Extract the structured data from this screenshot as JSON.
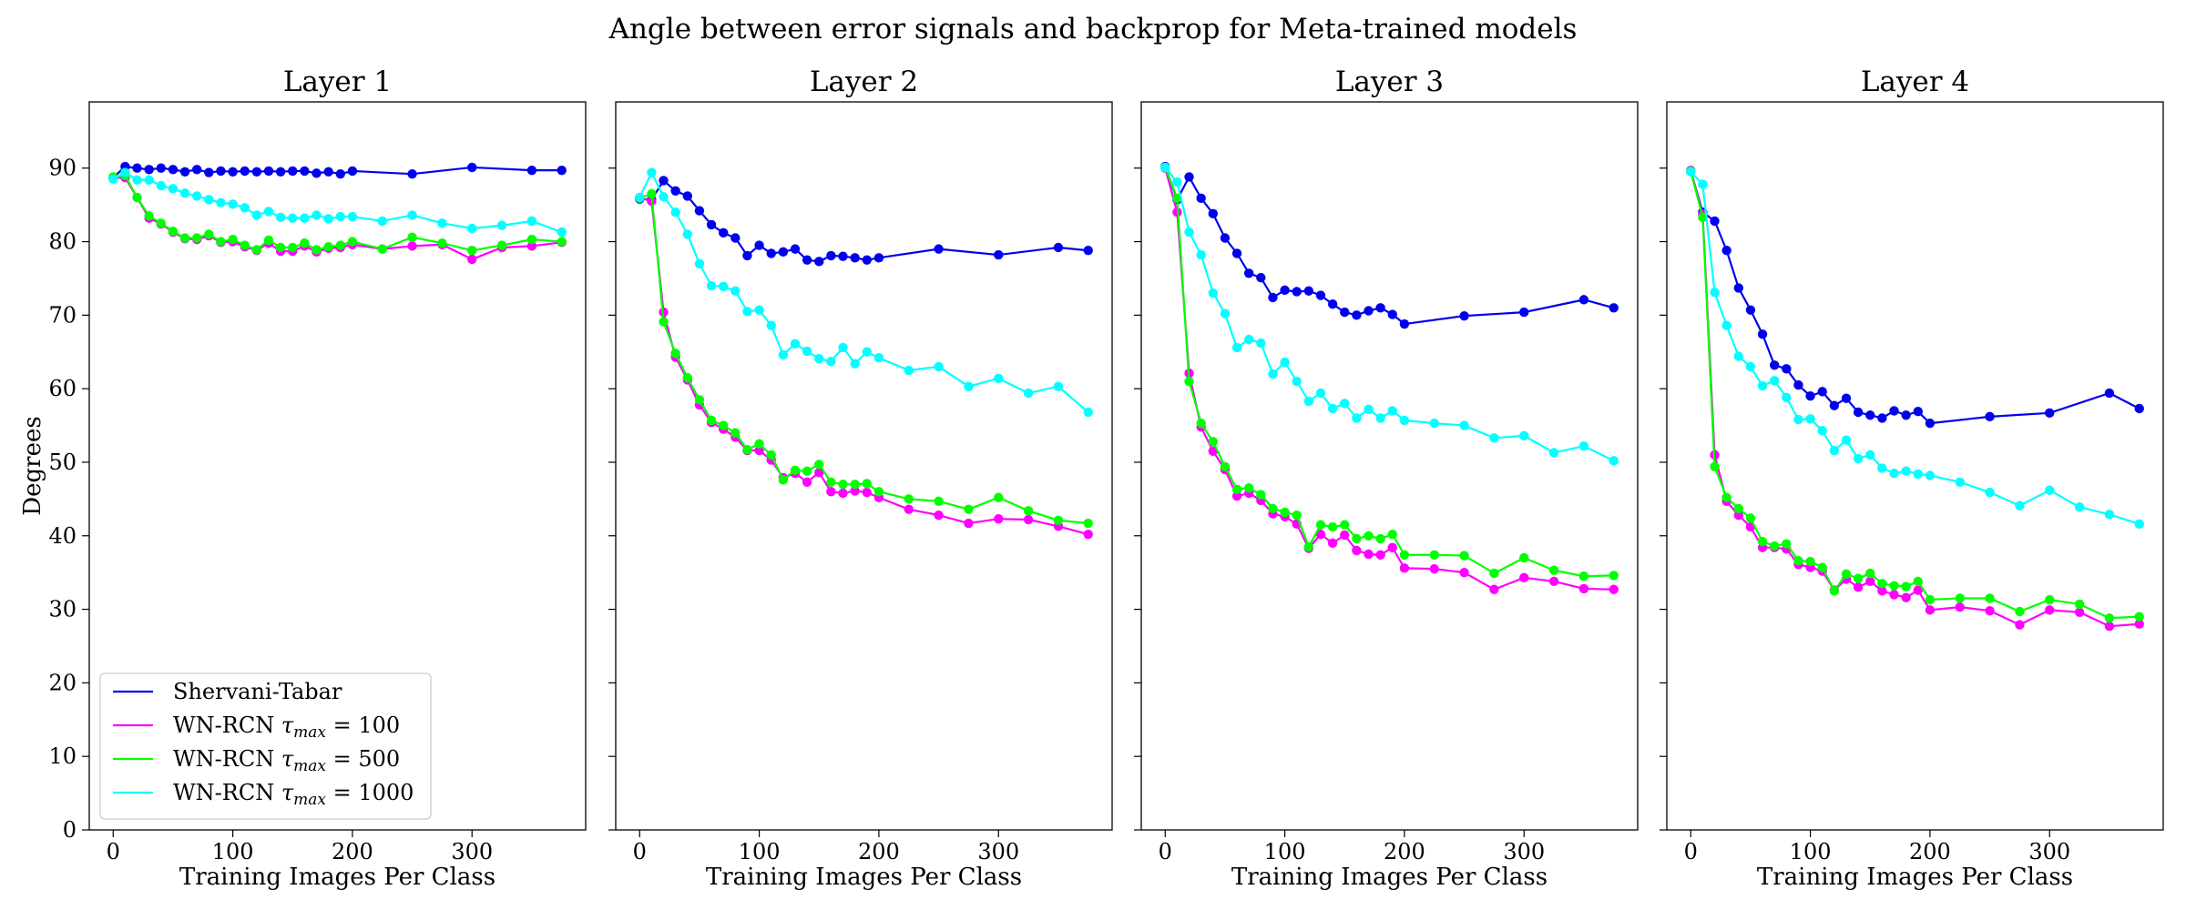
{
  "figure_title": "Angle between error signals and backprop for Meta-trained models",
  "colors": {
    "Shervani-Tabar": "#0000ee",
    "WN-RCN tau_max=100": "#ff00ff",
    "WN-RCN tau_max=500": "#00ff00",
    "WN-RCN tau_max=1000": "#00ffff"
  },
  "legend": {
    "location": "lower-left of first panel",
    "entries": [
      {
        "prefix": "Shervani-Tabar",
        "math": "",
        "suffix": ""
      },
      {
        "prefix": "WN-RCN ",
        "math": "τmax",
        "suffix": " = 100"
      },
      {
        "prefix": "WN-RCN ",
        "math": "τmax",
        "suffix": " = 500"
      },
      {
        "prefix": "WN-RCN ",
        "math": "τmax",
        "suffix": " = 1000"
      }
    ]
  },
  "chart_data": [
    {
      "type": "line",
      "title": "Layer 1",
      "xlabel": "Training Images Per Class",
      "ylabel": "Degrees",
      "xlim": [
        -20,
        395
      ],
      "ylim": [
        0,
        99
      ],
      "xticks": [
        0,
        100,
        200,
        300
      ],
      "yticks": [
        0,
        10,
        20,
        30,
        40,
        50,
        60,
        70,
        80,
        90
      ],
      "grid": false,
      "x": [
        0,
        10,
        20,
        30,
        40,
        50,
        60,
        70,
        80,
        90,
        100,
        110,
        120,
        130,
        140,
        150,
        160,
        170,
        180,
        190,
        200,
        225,
        250,
        275,
        300,
        325,
        350,
        375
      ],
      "series": [
        {
          "name": "Shervani-Tabar",
          "x": [
            0,
            10,
            20,
            30,
            40,
            50,
            60,
            70,
            80,
            90,
            100,
            110,
            120,
            130,
            140,
            150,
            160,
            170,
            180,
            190,
            200,
            250,
            300,
            350,
            375
          ],
          "values": [
            88.7,
            90.2,
            90.0,
            89.8,
            90.0,
            89.8,
            89.5,
            89.8,
            89.4,
            89.6,
            89.5,
            89.6,
            89.5,
            89.6,
            89.5,
            89.6,
            89.6,
            89.3,
            89.5,
            89.2,
            89.6,
            89.2,
            90.1,
            89.7,
            89.7
          ]
        },
        {
          "name": "WN-RCN τmax = 100",
          "values": [
            88.7,
            88.7,
            86.0,
            83.2,
            82.4,
            81.3,
            80.4,
            80.3,
            80.8,
            79.9,
            80.0,
            79.3,
            78.8,
            79.8,
            78.7,
            78.7,
            79.4,
            78.6,
            79.1,
            79.2,
            79.6,
            79.0,
            79.4,
            79.6,
            77.6,
            79.2,
            79.4,
            79.9
          ]
        },
        {
          "name": "WN-RCN τmax = 500",
          "values": [
            88.8,
            89.0,
            86.0,
            83.5,
            82.5,
            81.4,
            80.5,
            80.5,
            81.0,
            80.0,
            80.3,
            79.5,
            78.9,
            80.2,
            79.2,
            79.2,
            79.8,
            78.9,
            79.3,
            79.5,
            80.0,
            79.0,
            80.6,
            79.8,
            78.8,
            79.5,
            80.3,
            80.0
          ]
        },
        {
          "name": "WN-RCN τmax = 1000",
          "values": [
            88.5,
            89.4,
            88.4,
            88.4,
            87.6,
            87.2,
            86.6,
            86.2,
            85.7,
            85.3,
            85.1,
            84.6,
            83.6,
            84.1,
            83.3,
            83.2,
            83.2,
            83.6,
            83.1,
            83.4,
            83.4,
            82.8,
            83.6,
            82.5,
            81.8,
            82.2,
            82.8,
            81.3
          ]
        }
      ]
    },
    {
      "type": "line",
      "title": "Layer 2",
      "xlabel": "Training Images Per Class",
      "xlim": [
        -20,
        395
      ],
      "ylim": [
        0,
        99
      ],
      "xticks": [
        0,
        100,
        200,
        300
      ],
      "grid": false,
      "x": [
        0,
        10,
        20,
        30,
        40,
        50,
        60,
        70,
        80,
        90,
        100,
        110,
        120,
        130,
        140,
        150,
        160,
        170,
        180,
        190,
        200,
        225,
        250,
        275,
        300,
        325,
        350,
        375
      ],
      "series": [
        {
          "name": "Shervani-Tabar",
          "x": [
            0,
            10,
            20,
            30,
            40,
            50,
            60,
            70,
            80,
            90,
            100,
            110,
            120,
            130,
            140,
            150,
            160,
            170,
            180,
            190,
            200,
            250,
            300,
            350,
            375
          ],
          "values": [
            85.8,
            85.7,
            88.3,
            86.9,
            86.2,
            84.2,
            82.3,
            81.2,
            80.5,
            78.1,
            79.5,
            78.4,
            78.6,
            79.0,
            77.5,
            77.3,
            78.1,
            78.0,
            77.8,
            77.5,
            77.8,
            79.0,
            78.2,
            79.2,
            78.8
          ]
        },
        {
          "name": "WN-RCN τmax = 100",
          "values": [
            86.0,
            85.5,
            70.4,
            64.3,
            61.2,
            57.8,
            55.4,
            54.5,
            53.4,
            51.6,
            51.6,
            50.3,
            47.9,
            48.5,
            47.3,
            48.6,
            46.0,
            45.8,
            46.1,
            45.9,
            45.2,
            43.6,
            42.8,
            41.7,
            42.3,
            42.2,
            41.3,
            40.2
          ]
        },
        {
          "name": "WN-RCN τmax = 500",
          "values": [
            85.9,
            86.5,
            69.1,
            64.8,
            61.5,
            58.5,
            55.7,
            55.0,
            54.0,
            51.7,
            52.5,
            51.0,
            47.6,
            48.9,
            48.8,
            49.7,
            47.3,
            47.0,
            47.0,
            47.1,
            46.0,
            45.0,
            44.7,
            43.6,
            45.2,
            43.4,
            42.1,
            41.7
          ]
        },
        {
          "name": "WN-RCN τmax = 1000",
          "values": [
            86.0,
            89.4,
            86.1,
            84.0,
            81.0,
            77.0,
            74.0,
            73.9,
            73.3,
            70.5,
            70.7,
            68.6,
            64.6,
            66.1,
            65.1,
            64.1,
            63.7,
            65.6,
            63.4,
            65.0,
            64.2,
            62.5,
            63.0,
            60.3,
            61.4,
            59.4,
            60.3,
            56.8
          ]
        }
      ]
    },
    {
      "type": "line",
      "title": "Layer 3",
      "xlabel": "Training Images Per Class",
      "xlim": [
        -20,
        395
      ],
      "ylim": [
        0,
        99
      ],
      "xticks": [
        0,
        100,
        200,
        300
      ],
      "grid": false,
      "x": [
        0,
        10,
        20,
        30,
        40,
        50,
        60,
        70,
        80,
        90,
        100,
        110,
        120,
        130,
        140,
        150,
        160,
        170,
        180,
        190,
        200,
        225,
        250,
        275,
        300,
        325,
        350,
        375
      ],
      "series": [
        {
          "name": "Shervani-Tabar",
          "x": [
            0,
            10,
            20,
            30,
            40,
            50,
            60,
            70,
            80,
            90,
            100,
            110,
            120,
            130,
            140,
            150,
            160,
            170,
            180,
            190,
            200,
            250,
            300,
            350,
            375
          ],
          "values": [
            90.2,
            85.7,
            88.8,
            85.9,
            83.8,
            80.5,
            78.4,
            75.7,
            75.1,
            72.4,
            73.4,
            73.2,
            73.3,
            72.7,
            71.5,
            70.4,
            70.0,
            70.6,
            71.0,
            70.1,
            68.8,
            69.9,
            70.4,
            72.1,
            71.0
          ]
        },
        {
          "name": "WN-RCN τmax = 100",
          "values": [
            90.0,
            84.0,
            62.1,
            54.8,
            51.5,
            49.0,
            45.4,
            45.8,
            44.8,
            43.0,
            42.6,
            41.6,
            38.3,
            40.2,
            39.0,
            40.1,
            38.0,
            37.5,
            37.4,
            38.4,
            35.6,
            35.5,
            35.0,
            32.7,
            34.3,
            33.8,
            32.8,
            32.7
          ]
        },
        {
          "name": "WN-RCN τmax = 500",
          "values": [
            90.1,
            85.9,
            61.0,
            55.3,
            52.8,
            49.4,
            46.3,
            46.5,
            45.6,
            43.7,
            43.2,
            42.8,
            38.5,
            41.5,
            41.2,
            41.5,
            39.6,
            40.0,
            39.6,
            40.2,
            37.4,
            37.4,
            37.3,
            34.9,
            37.0,
            35.3,
            34.5,
            34.6
          ]
        },
        {
          "name": "WN-RCN τmax = 1000",
          "values": [
            90.1,
            88.1,
            81.3,
            78.2,
            73.0,
            70.2,
            65.6,
            66.7,
            66.2,
            62.0,
            63.6,
            61.0,
            58.3,
            59.4,
            57.3,
            58.0,
            56.0,
            57.2,
            56.0,
            57.0,
            55.7,
            55.3,
            55.0,
            53.3,
            53.6,
            51.3,
            52.2,
            50.2
          ]
        }
      ]
    },
    {
      "type": "line",
      "title": "Layer 4",
      "xlabel": "Training Images Per Class",
      "xlim": [
        -20,
        395
      ],
      "ylim": [
        0,
        99
      ],
      "xticks": [
        0,
        100,
        200,
        300
      ],
      "grid": false,
      "x": [
        0,
        10,
        20,
        30,
        40,
        50,
        60,
        70,
        80,
        90,
        100,
        110,
        120,
        130,
        140,
        150,
        160,
        170,
        180,
        190,
        200,
        225,
        250,
        275,
        300,
        325,
        350,
        375
      ],
      "series": [
        {
          "name": "Shervani-Tabar",
          "x": [
            0,
            10,
            20,
            30,
            40,
            50,
            60,
            70,
            80,
            90,
            100,
            110,
            120,
            130,
            140,
            150,
            160,
            170,
            180,
            190,
            200,
            250,
            300,
            350,
            375
          ],
          "values": [
            89.6,
            84.0,
            82.8,
            78.8,
            73.7,
            70.7,
            67.4,
            63.2,
            62.7,
            60.5,
            59.0,
            59.6,
            57.7,
            58.7,
            56.8,
            56.4,
            56.0,
            57.0,
            56.4,
            56.9,
            55.3,
            56.2,
            56.7,
            59.4,
            57.3
          ]
        },
        {
          "name": "WN-RCN τmax = 100",
          "values": [
            89.7,
            83.7,
            51.0,
            44.7,
            42.8,
            41.2,
            38.4,
            38.4,
            38.2,
            36.1,
            35.7,
            35.2,
            32.6,
            34.1,
            33.0,
            33.8,
            32.5,
            32.0,
            31.6,
            32.6,
            29.9,
            30.3,
            29.8,
            27.9,
            29.9,
            29.6,
            27.7,
            28.0
          ]
        },
        {
          "name": "WN-RCN τmax = 500",
          "values": [
            89.6,
            83.3,
            49.4,
            45.2,
            43.7,
            42.4,
            39.2,
            38.6,
            38.9,
            36.6,
            36.5,
            35.7,
            32.5,
            34.8,
            34.2,
            34.9,
            33.5,
            33.2,
            33.1,
            33.8,
            31.3,
            31.5,
            31.5,
            29.7,
            31.3,
            30.7,
            28.8,
            29.0
          ]
        },
        {
          "name": "WN-RCN τmax = 1000",
          "values": [
            89.5,
            87.8,
            73.1,
            68.6,
            64.4,
            63.0,
            60.4,
            61.1,
            58.8,
            55.8,
            55.9,
            54.3,
            51.6,
            53.0,
            50.5,
            51.0,
            49.2,
            48.5,
            48.8,
            48.4,
            48.2,
            47.3,
            45.9,
            44.1,
            46.2,
            43.9,
            42.9,
            41.6
          ]
        }
      ]
    }
  ]
}
